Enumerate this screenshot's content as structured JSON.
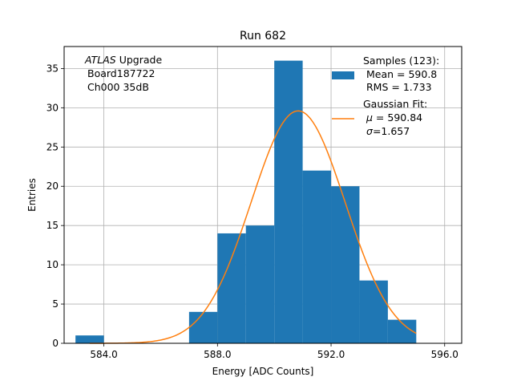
{
  "chart_data": {
    "type": "bar",
    "title": "Run 682",
    "xlabel": "Energy [ADC Counts]",
    "ylabel": "Entries",
    "xlim": [
      582.6,
      596.6
    ],
    "ylim": [
      0,
      37.8
    ],
    "xticks": [
      "584.0",
      "588.0",
      "592.0",
      "596.0"
    ],
    "xtick_values": [
      584,
      588,
      592,
      596
    ],
    "yticks": [
      "0",
      "5",
      "10",
      "15",
      "20",
      "25",
      "30",
      "35"
    ],
    "ytick_values": [
      0,
      5,
      10,
      15,
      20,
      25,
      30,
      35
    ],
    "grid": true,
    "bins": [
      {
        "x0": 583,
        "x1": 584,
        "count": 1
      },
      {
        "x0": 584,
        "x1": 585,
        "count": 0
      },
      {
        "x0": 585,
        "x1": 586,
        "count": 0
      },
      {
        "x0": 586,
        "x1": 587,
        "count": 0
      },
      {
        "x0": 587,
        "x1": 588,
        "count": 4
      },
      {
        "x0": 588,
        "x1": 589,
        "count": 14
      },
      {
        "x0": 589,
        "x1": 590,
        "count": 15
      },
      {
        "x0": 590,
        "x1": 591,
        "count": 36
      },
      {
        "x0": 591,
        "x1": 592,
        "count": 22
      },
      {
        "x0": 592,
        "x1": 593,
        "count": 20
      },
      {
        "x0": 593,
        "x1": 594,
        "count": 8
      },
      {
        "x0": 594,
        "x1": 595,
        "count": 3
      }
    ],
    "fit": {
      "amplitude": 29.6,
      "mu": 590.84,
      "sigma": 1.657,
      "x_start": 583.5,
      "x_end": 595.0
    },
    "colors": {
      "bars": "#1f77b4",
      "fit": "#ff7f0e",
      "grid": "#b0b0b0",
      "axes": "#000000"
    },
    "legend": {
      "placement": "top-right",
      "samples_title": "Samples (123):",
      "samples_mean": "Mean = 590.8",
      "samples_rms": "RMS = 1.733",
      "fit_title": "Gaussian Fit:",
      "fit_mu_symbol": "μ",
      "fit_mu_value": " = 590.84",
      "fit_sigma_symbol": "σ",
      "fit_sigma_value": "=1.657"
    },
    "annotation": {
      "experiment": "ATLAS",
      "suffix": " Upgrade",
      "board": "Board187722",
      "channel": "Ch000 35dB"
    }
  }
}
